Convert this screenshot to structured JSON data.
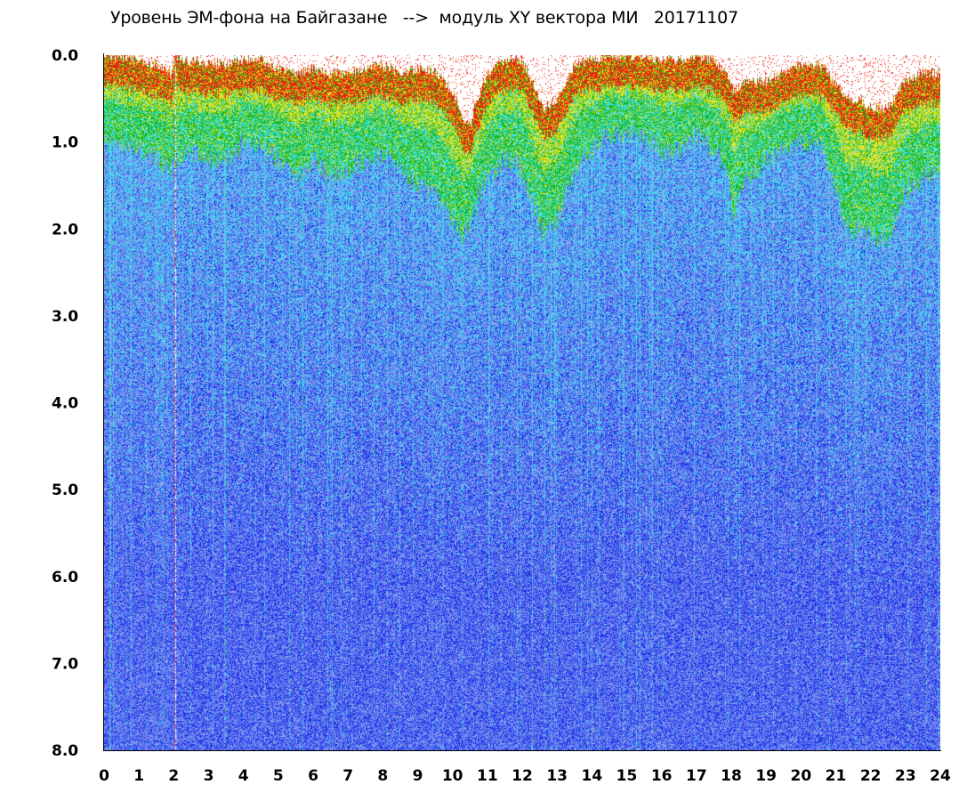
{
  "chart_data": {
    "type": "heatmap",
    "title": "Уровень ЭМ-фона на Байгазане   -->  модуль XY вектора МИ   20171107",
    "xlabel": "",
    "ylabel": "",
    "xlim": [
      0,
      24
    ],
    "ylim": [
      8.0,
      0.0
    ],
    "y_inverted": true,
    "grid": false,
    "x_ticks": [
      "0",
      "1",
      "2",
      "3",
      "4",
      "5",
      "6",
      "7",
      "8",
      "9",
      "10",
      "11",
      "12",
      "13",
      "14",
      "15",
      "16",
      "17",
      "18",
      "19",
      "20",
      "21",
      "22",
      "23",
      "24"
    ],
    "y_ticks": [
      "0.0",
      "1.0",
      "2.0",
      "3.0",
      "4.0",
      "5.0",
      "6.0",
      "7.0",
      "8.0"
    ],
    "colors": {
      "background": "#ffffff",
      "axis": "#000000",
      "low_dark": "#1e2ee6",
      "low": "#4f6ef0",
      "mid_low": "#8ea0ee",
      "mid": "#3ee2ee",
      "mid_high": "#18b618",
      "high": "#f2e21a",
      "max": "#ee2010"
    },
    "upper_envelope": {
      "hours": [
        0,
        0.5,
        1,
        1.5,
        1.9,
        2.05,
        2.3,
        3,
        3.5,
        4,
        4.5,
        5,
        5.5,
        6,
        6.5,
        7,
        7.5,
        8,
        8.5,
        9,
        9.5,
        10,
        10.3,
        10.5,
        10.7,
        11,
        11.5,
        12,
        12.3,
        12.6,
        13,
        13.5,
        14,
        14.5,
        15,
        15.5,
        16,
        16.5,
        17,
        17.5,
        17.9,
        18.05,
        18.5,
        19,
        19.5,
        20,
        20.5,
        21,
        21.3,
        21.7,
        22,
        22.5,
        23,
        23.5,
        24
      ],
      "top_of_signal": [
        0.0,
        0.0,
        0.05,
        0.1,
        0.2,
        0.0,
        0.05,
        0.08,
        0.1,
        0.06,
        0.05,
        0.15,
        0.2,
        0.15,
        0.2,
        0.2,
        0.15,
        0.1,
        0.2,
        0.15,
        0.2,
        0.4,
        0.7,
        0.8,
        0.5,
        0.2,
        0.05,
        0.05,
        0.3,
        0.6,
        0.5,
        0.1,
        0.05,
        0.0,
        0.0,
        0.0,
        0.05,
        0.05,
        0.0,
        0.05,
        0.2,
        0.4,
        0.3,
        0.3,
        0.2,
        0.1,
        0.1,
        0.3,
        0.5,
        0.5,
        0.6,
        0.6,
        0.3,
        0.2,
        0.2
      ],
      "cyan_top": [
        1.0,
        1.0,
        1.1,
        1.2,
        1.3,
        1.2,
        1.1,
        1.2,
        1.2,
        1.0,
        1.0,
        1.2,
        1.4,
        1.2,
        1.4,
        1.3,
        1.2,
        1.1,
        1.3,
        1.5,
        1.6,
        1.9,
        2.1,
        2.0,
        1.7,
        1.4,
        1.2,
        1.3,
        1.7,
        2.0,
        1.9,
        1.3,
        1.1,
        0.9,
        0.9,
        0.9,
        1.1,
        1.1,
        0.9,
        1.1,
        1.3,
        1.8,
        1.4,
        1.2,
        1.1,
        1.0,
        1.0,
        1.5,
        2.0,
        2.0,
        2.1,
        2.1,
        1.6,
        1.4,
        1.3
      ]
    }
  }
}
